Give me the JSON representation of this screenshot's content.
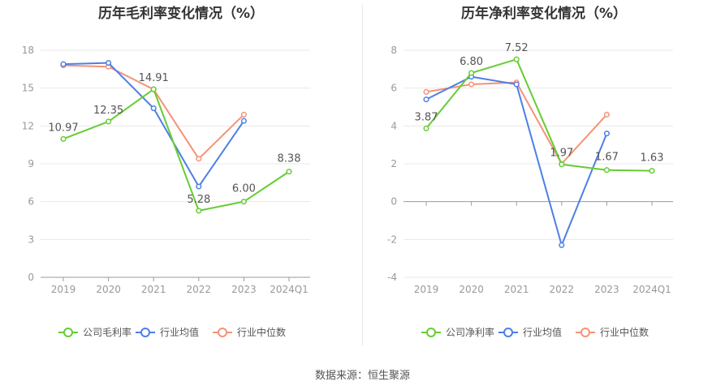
{
  "source_text": "数据来源：恒生聚源",
  "chart_data": [
    {
      "type": "line",
      "title": "历年毛利率变化情况（%）",
      "categories": [
        "2019",
        "2020",
        "2021",
        "2022",
        "2023",
        "2024Q1"
      ],
      "ylim": [
        0,
        18
      ],
      "yticks": [
        "0",
        "3",
        "6",
        "9",
        "12",
        "15",
        "18"
      ],
      "grid": true,
      "legend_position": "bottom",
      "series": [
        {
          "name": "公司毛利率",
          "color": "#66cc33",
          "values": [
            10.97,
            12.35,
            14.91,
            5.28,
            6.0,
            8.38
          ],
          "labels": [
            "10.97",
            "12.35",
            "14.91",
            "5.28",
            "6.00",
            "8.38"
          ]
        },
        {
          "name": "行业均值",
          "color": "#4d7fe6",
          "values": [
            16.9,
            17.0,
            13.4,
            7.2,
            12.4,
            null
          ],
          "labels": []
        },
        {
          "name": "行业中位数",
          "color": "#f49375",
          "values": [
            16.8,
            16.7,
            14.9,
            9.4,
            12.9,
            null
          ],
          "labels": []
        }
      ]
    },
    {
      "type": "line",
      "title": "历年净利率变化情况（%）",
      "categories": [
        "2019",
        "2020",
        "2021",
        "2022",
        "2023",
        "2024Q1"
      ],
      "ylim": [
        -4,
        8
      ],
      "yticks": [
        "-4",
        "-2",
        "0",
        "2",
        "4",
        "6",
        "8"
      ],
      "grid": true,
      "legend_position": "bottom",
      "series": [
        {
          "name": "公司净利率",
          "color": "#66cc33",
          "values": [
            3.87,
            6.8,
            7.52,
            1.97,
            1.67,
            1.63
          ],
          "labels": [
            "3.87",
            "6.80",
            "7.52",
            "1.97",
            "1.67",
            "1.63"
          ]
        },
        {
          "name": "行业均值",
          "color": "#4d7fe6",
          "values": [
            5.4,
            6.6,
            6.2,
            -2.3,
            3.6,
            null
          ],
          "labels": []
        },
        {
          "name": "行业中位数",
          "color": "#f49375",
          "values": [
            5.8,
            6.2,
            6.3,
            2.0,
            4.6,
            null
          ],
          "labels": []
        }
      ]
    }
  ]
}
